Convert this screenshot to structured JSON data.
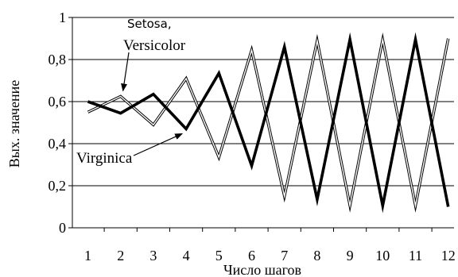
{
  "chart_data": {
    "type": "line",
    "xlabel": "Число шагов",
    "ylabel": "Вых. значение",
    "x": [
      1,
      2,
      3,
      4,
      5,
      6,
      7,
      8,
      9,
      10,
      11,
      12
    ],
    "x_tick_labels": [
      "1",
      "2",
      "3",
      "4",
      "5",
      "6",
      "7",
      "8",
      "9",
      "10",
      "11",
      "12"
    ],
    "ylim": [
      0,
      1
    ],
    "y_ticks": [
      0,
      0.2,
      0.4,
      0.6,
      0.8,
      1
    ],
    "y_tick_labels": [
      "0",
      "0,2",
      "0,4",
      "0,6",
      "0,8",
      "1"
    ],
    "grid": "horizontal",
    "series": [
      {
        "style": "double-outline",
        "values": [
          0.55,
          0.625,
          0.49,
          0.71,
          0.335,
          0.845,
          0.15,
          0.89,
          0.105,
          0.895,
          0.105,
          0.9
        ]
      },
      {
        "style": "bold",
        "values": [
          0.6,
          0.545,
          0.635,
          0.47,
          0.735,
          0.295,
          0.86,
          0.135,
          0.895,
          0.105,
          0.895,
          0.1
        ]
      }
    ],
    "annotations": [
      {
        "text": "Setosa,",
        "font": "sans",
        "points_to_series": 0
      },
      {
        "text": "Versicolor",
        "font": "serif"
      },
      {
        "text": "Virginica",
        "font": "serif",
        "points_to_series": 1
      }
    ]
  }
}
